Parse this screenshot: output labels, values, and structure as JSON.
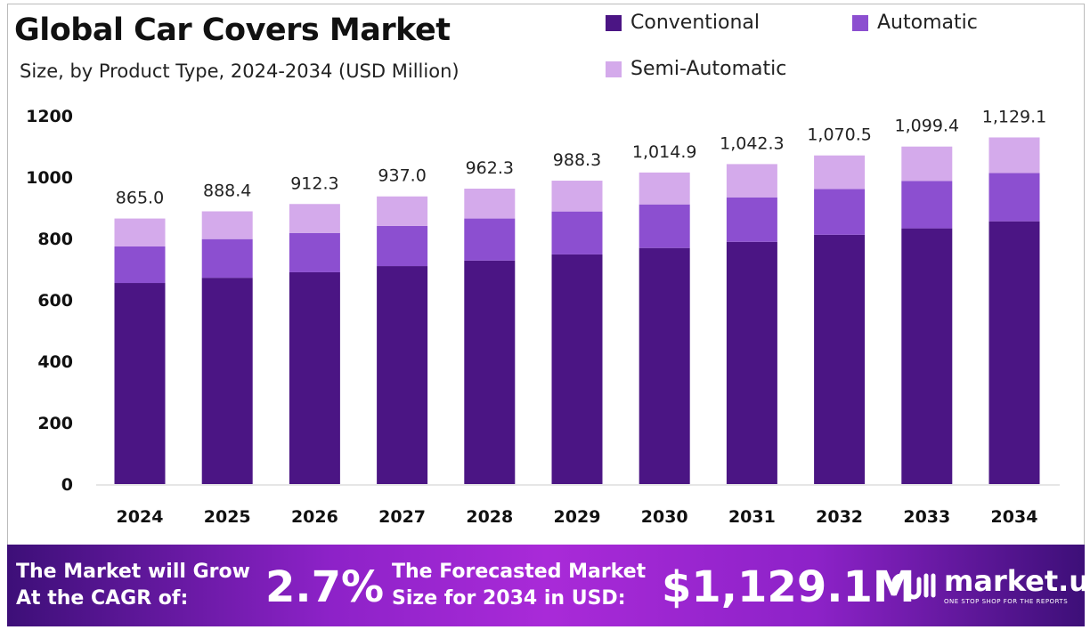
{
  "chart_data": {
    "type": "bar",
    "stacked": true,
    "title": "Global Car Covers Market",
    "subtitle": "Size, by Product Type, 2024-2034 (USD Million)",
    "categories": [
      "2024",
      "2025",
      "2026",
      "2027",
      "2028",
      "2029",
      "2030",
      "2031",
      "2032",
      "2033",
      "2034"
    ],
    "series": [
      {
        "name": "Conventional",
        "color": "#4b1584",
        "values": [
          655,
          672,
          690,
          710,
          728,
          748,
          769,
          789,
          812,
          833,
          856
        ]
      },
      {
        "name": "Automatic",
        "color": "#8c4fd0",
        "values": [
          119,
          126,
          128,
          131,
          137,
          140,
          142,
          145,
          149,
          154,
          157
        ]
      },
      {
        "name": "Semi-Automatic",
        "color": "#d4aaeb",
        "values": [
          91,
          90.4,
          94.3,
          96,
          97.3,
          100.3,
          103.9,
          108.3,
          109.5,
          112.4,
          116.1
        ]
      }
    ],
    "totals": [
      "865.0",
      "888.4",
      "912.3",
      "937.0",
      "962.3",
      "988.3",
      "1,014.9",
      "1,042.3",
      "1,070.5",
      "1,099.4",
      "1,129.1"
    ],
    "ylim": [
      0,
      1200
    ],
    "yticks": [
      "0",
      "200",
      "400",
      "600",
      "800",
      "1000",
      "1200"
    ],
    "grid": false,
    "legend_position": "top-right"
  },
  "footer": {
    "cagr_text_1": "The Market will Grow",
    "cagr_text_2": "At the CAGR of:",
    "cagr_value": "2.7%",
    "forecast_text_1": "The Forecasted Market",
    "forecast_text_2": "Size for 2034 in USD:",
    "forecast_value": "$1,129.1M",
    "logo_name": "market.us",
    "logo_tagline": "ONE STOP SHOP FOR THE REPORTS"
  }
}
